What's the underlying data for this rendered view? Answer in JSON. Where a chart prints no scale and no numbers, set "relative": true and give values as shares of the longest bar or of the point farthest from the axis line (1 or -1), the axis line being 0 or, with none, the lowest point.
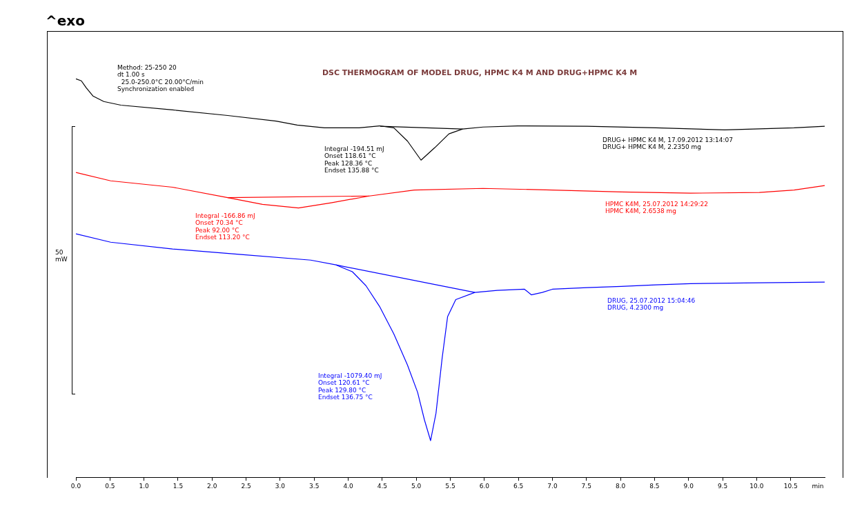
{
  "chart_data": {
    "type": "line",
    "title": "DSC THERMOGRAM OF MODEL DRUG, HPMC K4 M AND DRUG+HPMC K4 M",
    "xlabel": "min",
    "relative": true,
    "grid": false,
    "legend": false,
    "marker": "none",
    "line_style": "solid",
    "xlim": [
      0,
      11
    ],
    "xticks": [
      {
        "value": 0,
        "label": "0.0"
      },
      {
        "value": 0.5,
        "label": "0.5"
      },
      {
        "value": 1,
        "label": "1.0"
      },
      {
        "value": 1.5,
        "label": "1.5"
      },
      {
        "value": 2,
        "label": "2.0"
      },
      {
        "value": 2.5,
        "label": "2.5"
      },
      {
        "value": 3,
        "label": "3.0"
      },
      {
        "value": 3.5,
        "label": "3.5"
      },
      {
        "value": 4,
        "label": "4.0"
      },
      {
        "value": 4.5,
        "label": "4.5"
      },
      {
        "value": 5,
        "label": "5.0"
      },
      {
        "value": 5.5,
        "label": "5.5"
      },
      {
        "value": 6,
        "label": "6.0"
      },
      {
        "value": 6.5,
        "label": "6.5"
      },
      {
        "value": 7,
        "label": "7.0"
      },
      {
        "value": 7.5,
        "label": "7.5"
      },
      {
        "value": 8,
        "label": "8.0"
      },
      {
        "value": 8.5,
        "label": "8.5"
      },
      {
        "value": 9,
        "label": "9.0"
      },
      {
        "value": 9.5,
        "label": "9.5"
      },
      {
        "value": 10,
        "label": "10.0"
      },
      {
        "value": 10.5,
        "label": "10.5"
      }
    ],
    "series": [
      {
        "color": "#000000",
        "x": [
          0,
          0.08,
          0.15,
          0.25,
          0.41,
          0.66,
          1.42,
          2.23,
          2.94,
          3.25,
          3.65,
          4.16,
          4.46,
          4.67,
          4.87,
          5.07,
          5.27,
          5.48,
          5.68,
          5.98,
          6.49,
          7.51,
          8.52,
          9.53,
          10.55,
          11.0
        ],
        "values": [
          1.0,
          0.995,
          0.978,
          0.957,
          0.943,
          0.934,
          0.922,
          0.908,
          0.894,
          0.884,
          0.877,
          0.877,
          0.882,
          0.877,
          0.844,
          0.796,
          0.827,
          0.862,
          0.874,
          0.879,
          0.882,
          0.881,
          0.877,
          0.872,
          0.877,
          0.881
        ]
      },
      {
        "color": "#ff0000",
        "x": [
          0,
          0.51,
          1.42,
          2.23,
          2.74,
          3.27,
          3.75,
          4.31,
          4.97,
          5.98,
          7.0,
          8.01,
          9.03,
          10.04,
          10.55,
          11.0
        ],
        "values": [
          0.765,
          0.744,
          0.728,
          0.702,
          0.685,
          0.676,
          0.689,
          0.706,
          0.721,
          0.725,
          0.721,
          0.716,
          0.713,
          0.715,
          0.721,
          0.732
        ]
      },
      {
        "color": "#0000ff",
        "x": [
          0,
          0.51,
          1.42,
          2.43,
          3.45,
          3.82,
          4.06,
          4.26,
          4.46,
          4.67,
          4.87,
          5.02,
          5.12,
          5.21,
          5.29,
          5.38,
          5.46,
          5.58,
          5.86,
          6.19,
          6.59,
          6.69,
          6.85,
          7.0,
          7.51,
          8.01,
          8.52,
          9.03,
          10.04,
          11.0
        ],
        "values": [
          0.611,
          0.59,
          0.573,
          0.559,
          0.545,
          0.533,
          0.516,
          0.481,
          0.429,
          0.36,
          0.282,
          0.213,
          0.144,
          0.092,
          0.161,
          0.299,
          0.403,
          0.446,
          0.464,
          0.469,
          0.472,
          0.458,
          0.464,
          0.472,
          0.476,
          0.479,
          0.483,
          0.486,
          0.488,
          0.49
        ]
      },
      {
        "type": "line",
        "color": "#000000",
        "x": [
          4.47,
          5.68
        ],
        "values": [
          0.881,
          0.874
        ]
      },
      {
        "type": "line",
        "color": "#ff0000",
        "x": [
          2.23,
          4.31
        ],
        "values": [
          0.702,
          0.706
        ]
      },
      {
        "type": "line",
        "color": "#0000ff",
        "x": [
          3.82,
          5.86
        ],
        "values": [
          0.533,
          0.464
        ]
      }
    ],
    "annotations": [
      "^exo",
      "Method: 25-250 20\ndt 1.00 s\n  25.0-250.0°C 20.00°C/min\nSynchronization enabled",
      "50\nmW",
      "Integral -194.51 mJ\nOnset 118.61 °C\nPeak 128.36 °C\nEndset 135.88 °C",
      "DRUG+ HPMC K4 M, 17.09.2012 13:14:07\nDRUG+ HPMC K4 M, 2.2350 mg",
      "Integral -166.86 mJ\nOnset 70.34 °C\nPeak 92.00 °C\nEndset 113.20 °C",
      "HPMC K4M, 25.07.2012 14:29:22\nHPMC K4M, 2.6538 mg",
      "Integral -1079.40 mJ\nOnset 120.61 °C\nPeak 129.80 °C\nEndset 136.75 °C",
      "DRUG, 25.07.2012 15:04:46\nDRUG, 4.2300 mg"
    ]
  }
}
